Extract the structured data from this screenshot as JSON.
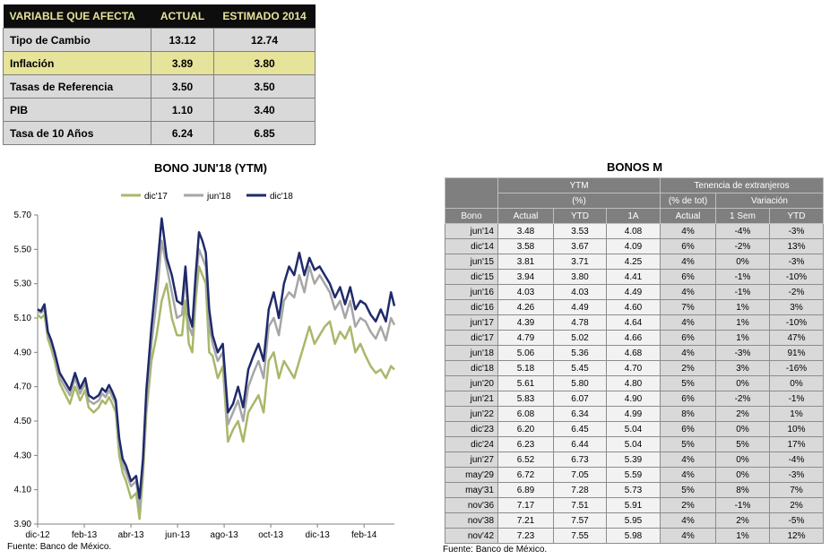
{
  "summary": {
    "headers": [
      "VARIABLE QUE AFECTA",
      "ACTUAL",
      "ESTIMADO 2014"
    ],
    "rows": [
      {
        "label": "Tipo de Cambio",
        "actual": "13.12",
        "estimado": "12.74"
      },
      {
        "label": "Inflación",
        "actual": "3.89",
        "estimado": "3.80"
      },
      {
        "label": "Tasas de Referencia",
        "actual": "3.50",
        "estimado": "3.50"
      },
      {
        "label": "PIB",
        "actual": "1.10",
        "estimado": "3.40"
      },
      {
        "label": "Tasa de 10 Años",
        "actual": "6.24",
        "estimado": "6.85"
      }
    ],
    "highlight_color": "#e6e39a"
  },
  "chart": {
    "title": "BONO JUN'18 (YTM)",
    "source": "Fuente: Banco de México."
  },
  "chart_data": {
    "type": "line",
    "title": "BONO JUN'18 (YTM)",
    "xlabel": "",
    "ylabel": "",
    "ylim": [
      3.9,
      5.7
    ],
    "yticks": [
      "5.70",
      "5.50",
      "5.30",
      "5.10",
      "4.90",
      "4.70",
      "4.50",
      "4.30",
      "4.10",
      "3.90"
    ],
    "xticks": [
      "dic-12",
      "feb-13",
      "abr-13",
      "jun-13",
      "ago-13",
      "oct-13",
      "dic-13",
      "feb-14"
    ],
    "legend_position": "top",
    "grid": false,
    "series": [
      {
        "name": "dic'17",
        "color": "#a8b86a",
        "x": [
          0,
          2,
          4,
          6,
          8,
          10,
          13,
          16,
          19,
          22,
          25,
          28,
          30,
          33,
          36,
          38,
          40,
          42,
          44,
          46,
          48,
          50,
          52,
          55,
          58,
          60,
          62,
          64,
          67,
          70,
          73,
          76,
          79,
          82,
          85,
          87,
          89,
          91,
          93,
          95,
          97,
          99,
          101,
          103,
          106,
          109,
          112,
          115,
          118,
          121,
          124,
          127,
          130,
          133,
          136,
          139,
          142,
          145,
          148,
          151,
          154,
          157,
          160,
          163,
          166,
          169,
          172,
          175,
          178,
          181,
          184,
          187,
          190,
          193,
          196,
          199,
          202,
          205,
          208,
          210
        ],
        "y": [
          5.12,
          5.1,
          5.12,
          4.98,
          4.92,
          4.85,
          4.72,
          4.66,
          4.6,
          4.7,
          4.62,
          4.68,
          4.58,
          4.55,
          4.58,
          4.62,
          4.6,
          4.64,
          4.6,
          4.55,
          4.3,
          4.2,
          4.15,
          4.05,
          4.08,
          3.93,
          4.18,
          4.55,
          4.85,
          5.0,
          5.2,
          5.3,
          5.1,
          5.0,
          5.0,
          5.2,
          4.95,
          4.9,
          5.2,
          5.4,
          5.35,
          5.3,
          4.9,
          4.88,
          4.75,
          4.82,
          4.38,
          4.45,
          4.5,
          4.38,
          4.55,
          4.6,
          4.65,
          4.55,
          4.85,
          4.9,
          4.75,
          4.85,
          4.8,
          4.75,
          4.85,
          4.95,
          5.05,
          4.95,
          5.0,
          5.05,
          5.08,
          4.95,
          5.02,
          4.98,
          5.05,
          4.9,
          4.95,
          4.88,
          4.82,
          4.78,
          4.8,
          4.75,
          4.82,
          4.8
        ]
      },
      {
        "name": "jun'18",
        "color": "#a6a6a6",
        "x": [
          0,
          2,
          4,
          6,
          8,
          10,
          13,
          16,
          19,
          22,
          25,
          28,
          30,
          33,
          36,
          38,
          40,
          42,
          44,
          46,
          48,
          50,
          52,
          55,
          58,
          60,
          62,
          64,
          67,
          70,
          73,
          76,
          79,
          82,
          85,
          87,
          89,
          91,
          93,
          95,
          97,
          99,
          101,
          103,
          106,
          109,
          112,
          115,
          118,
          121,
          124,
          127,
          130,
          133,
          136,
          139,
          142,
          145,
          148,
          151,
          154,
          157,
          160,
          163,
          166,
          169,
          172,
          175,
          178,
          181,
          184,
          187,
          190,
          193,
          196,
          199,
          202,
          205,
          208,
          210
        ],
        "y": [
          5.14,
          5.13,
          5.15,
          5.0,
          4.95,
          4.88,
          4.75,
          4.7,
          4.65,
          4.75,
          4.66,
          4.72,
          4.62,
          4.6,
          4.62,
          4.66,
          4.64,
          4.68,
          4.64,
          4.6,
          4.36,
          4.25,
          4.2,
          4.12,
          4.15,
          4.0,
          4.25,
          4.62,
          4.95,
          5.2,
          5.55,
          5.4,
          5.25,
          5.1,
          5.12,
          5.35,
          5.05,
          5.0,
          5.3,
          5.5,
          5.45,
          5.4,
          5.05,
          4.95,
          4.85,
          4.9,
          4.48,
          4.55,
          4.62,
          4.5,
          4.7,
          4.78,
          4.85,
          4.75,
          5.05,
          5.1,
          5.0,
          5.2,
          5.25,
          5.22,
          5.35,
          5.25,
          5.4,
          5.3,
          5.35,
          5.3,
          5.25,
          5.15,
          5.2,
          5.1,
          5.2,
          5.05,
          5.1,
          5.08,
          5.02,
          4.98,
          5.05,
          4.97,
          5.1,
          5.06
        ]
      },
      {
        "name": "dic'18",
        "color": "#1f2a6b",
        "x": [
          0,
          2,
          4,
          6,
          8,
          10,
          13,
          16,
          19,
          22,
          25,
          28,
          30,
          33,
          36,
          38,
          40,
          42,
          44,
          46,
          48,
          50,
          52,
          55,
          58,
          60,
          62,
          64,
          67,
          70,
          73,
          76,
          79,
          82,
          85,
          87,
          89,
          91,
          93,
          95,
          97,
          99,
          101,
          103,
          106,
          109,
          112,
          115,
          118,
          121,
          124,
          127,
          130,
          133,
          136,
          139,
          142,
          145,
          148,
          151,
          154,
          157,
          160,
          163,
          166,
          169,
          172,
          175,
          178,
          181,
          184,
          187,
          190,
          193,
          196,
          199,
          202,
          205,
          208,
          210
        ],
        "y": [
          5.15,
          5.14,
          5.18,
          5.02,
          4.97,
          4.9,
          4.78,
          4.73,
          4.68,
          4.78,
          4.69,
          4.75,
          4.65,
          4.63,
          4.65,
          4.69,
          4.67,
          4.71,
          4.67,
          4.62,
          4.4,
          4.28,
          4.24,
          4.15,
          4.18,
          4.05,
          4.28,
          4.68,
          5.05,
          5.35,
          5.68,
          5.45,
          5.35,
          5.2,
          5.18,
          5.4,
          5.12,
          5.05,
          5.35,
          5.6,
          5.55,
          5.48,
          5.15,
          5.0,
          4.9,
          4.95,
          4.55,
          4.6,
          4.7,
          4.58,
          4.8,
          4.88,
          4.95,
          4.85,
          5.15,
          5.25,
          5.1,
          5.3,
          5.4,
          5.35,
          5.48,
          5.35,
          5.45,
          5.38,
          5.4,
          5.35,
          5.3,
          5.22,
          5.28,
          5.18,
          5.28,
          5.15,
          5.2,
          5.18,
          5.12,
          5.08,
          5.15,
          5.08,
          5.25,
          5.17
        ]
      }
    ]
  },
  "bonos": {
    "title": "BONOS M",
    "group_headers": {
      "ytm": "YTM",
      "tenencia": "Tenencia de extranjeros"
    },
    "sub_headers": {
      "pct": "(%)",
      "pct_tot": "(% de tot)",
      "variacion": "Variación"
    },
    "columns": [
      "Bono",
      "Actual",
      "YTD",
      "1A",
      "Actual",
      "1 Sem",
      "YTD"
    ],
    "rows": [
      [
        "jun'14",
        "3.48",
        "3.53",
        "4.08",
        "4%",
        "-4%",
        "-3%"
      ],
      [
        "dic'14",
        "3.58",
        "3.67",
        "4.09",
        "6%",
        "-2%",
        "13%"
      ],
      [
        "jun'15",
        "3.81",
        "3.71",
        "4.25",
        "4%",
        "0%",
        "-3%"
      ],
      [
        "dic'15",
        "3.94",
        "3.80",
        "4.41",
        "6%",
        "-1%",
        "-10%"
      ],
      [
        "jun'16",
        "4.03",
        "4.03",
        "4.49",
        "4%",
        "-1%",
        "-2%"
      ],
      [
        "dic'16",
        "4.26",
        "4.49",
        "4.60",
        "7%",
        "1%",
        "3%"
      ],
      [
        "jun'17",
        "4.39",
        "4.78",
        "4.64",
        "4%",
        "1%",
        "-10%"
      ],
      [
        "dic'17",
        "4.79",
        "5.02",
        "4.66",
        "6%",
        "1%",
        "47%"
      ],
      [
        "jun'18",
        "5.06",
        "5.36",
        "4.68",
        "4%",
        "-3%",
        "91%"
      ],
      [
        "dic'18",
        "5.18",
        "5.45",
        "4.70",
        "2%",
        "3%",
        "-16%"
      ],
      [
        "jun'20",
        "5.61",
        "5.80",
        "4.80",
        "5%",
        "0%",
        "0%"
      ],
      [
        "jun'21",
        "5.83",
        "6.07",
        "4.90",
        "6%",
        "-2%",
        "-1%"
      ],
      [
        "jun'22",
        "6.08",
        "6.34",
        "4.99",
        "8%",
        "2%",
        "1%"
      ],
      [
        "dic'23",
        "6.20",
        "6.45",
        "5.04",
        "6%",
        "0%",
        "10%"
      ],
      [
        "dic'24",
        "6.23",
        "6.44",
        "5.04",
        "5%",
        "5%",
        "17%"
      ],
      [
        "jun'27",
        "6.52",
        "6.73",
        "5.39",
        "4%",
        "0%",
        "-4%"
      ],
      [
        "may'29",
        "6.72",
        "7.05",
        "5.59",
        "4%",
        "0%",
        "-3%"
      ],
      [
        "may'31",
        "6.89",
        "7.28",
        "5.73",
        "5%",
        "8%",
        "7%"
      ],
      [
        "nov'36",
        "7.17",
        "7.51",
        "5.91",
        "2%",
        "-1%",
        "2%"
      ],
      [
        "nov'38",
        "7.21",
        "7.57",
        "5.95",
        "4%",
        "2%",
        "-5%"
      ],
      [
        "nov'42",
        "7.23",
        "7.55",
        "5.98",
        "4%",
        "1%",
        "12%"
      ]
    ],
    "source": "Fuente: Banco de México."
  }
}
